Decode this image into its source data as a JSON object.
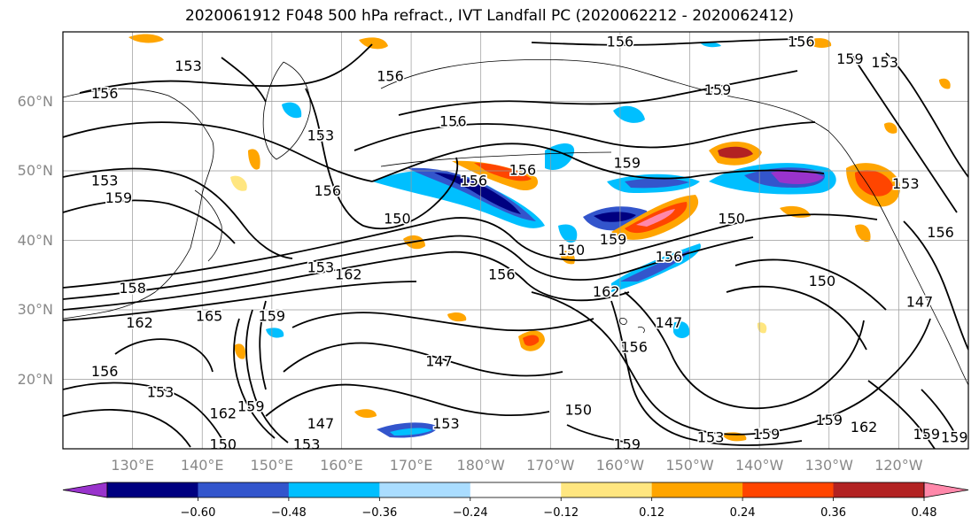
{
  "title": "2020061912 F048 500 hPa refract., IVT Landfall PC (2020062212 - 2020062412)",
  "lat_labels": [
    {
      "label": "60°N",
      "lat": 60
    },
    {
      "label": "50°N",
      "lat": 50
    },
    {
      "label": "40°N",
      "lat": 40
    },
    {
      "label": "30°N",
      "lat": 30
    },
    {
      "label": "20°N",
      "lat": 20
    }
  ],
  "lon_labels": [
    {
      "label": "130°E",
      "lon": 130
    },
    {
      "label": "140°E",
      "lon": 140
    },
    {
      "label": "150°E",
      "lon": 150
    },
    {
      "label": "160°E",
      "lon": 160
    },
    {
      "label": "170°E",
      "lon": 170
    },
    {
      "label": "180°W",
      "lon": 180
    },
    {
      "label": "170°W",
      "lon": 190
    },
    {
      "label": "160°W",
      "lon": 200
    },
    {
      "label": "150°W",
      "lon": 210
    },
    {
      "label": "140°W",
      "lon": 220
    },
    {
      "label": "130°W",
      "lon": 230
    },
    {
      "label": "120°W",
      "lon": 240
    }
  ],
  "map_extent": {
    "lon_min": 120,
    "lon_max": 250,
    "lat_min": 10,
    "lat_max": 70,
    "grid_step": 10
  },
  "colorbar": {
    "levels": [
      -0.72,
      -0.6,
      -0.48,
      -0.36,
      -0.24,
      -0.12,
      0.12,
      0.24,
      0.36,
      0.48,
      0.6,
      0.72
    ],
    "tick_labels": [
      "−0.60",
      "−0.48",
      "−0.36",
      "−0.24",
      "−0.12",
      "0.12",
      "0.24",
      "0.36",
      "0.48",
      "0.60"
    ],
    "tick_values": [
      -0.6,
      -0.48,
      -0.36,
      -0.24,
      -0.12,
      0.12,
      0.24,
      0.36,
      0.48,
      0.6
    ],
    "colors": [
      "#9933cc",
      "#000080",
      "#3355cc",
      "#00bfff",
      "#aaddff",
      "#ffffff",
      "#ffe680",
      "#ffa500",
      "#ff4500",
      "#b22222",
      "#ff88aa"
    ]
  },
  "contour_labels": [
    {
      "text": "156",
      "lon": 200,
      "lat": 68.5
    },
    {
      "text": "156",
      "lon": 226,
      "lat": 68.5
    },
    {
      "text": "159",
      "lon": 233,
      "lat": 66
    },
    {
      "text": "153",
      "lon": 238,
      "lat": 65.5
    },
    {
      "text": "153",
      "lon": 138,
      "lat": 65
    },
    {
      "text": "156",
      "lon": 167,
      "lat": 63.5
    },
    {
      "text": "156",
      "lon": 126,
      "lat": 61
    },
    {
      "text": "159",
      "lon": 214,
      "lat": 61.5
    },
    {
      "text": "153",
      "lon": 157,
      "lat": 55
    },
    {
      "text": "156",
      "lon": 176,
      "lat": 57
    },
    {
      "text": "159",
      "lon": 201,
      "lat": 51
    },
    {
      "text": "156",
      "lon": 186,
      "lat": 50
    },
    {
      "text": "153",
      "lon": 126,
      "lat": 48.5
    },
    {
      "text": "159",
      "lon": 128,
      "lat": 46
    },
    {
      "text": "156",
      "lon": 158,
      "lat": 47
    },
    {
      "text": "156",
      "lon": 179,
      "lat": 48.5
    },
    {
      "text": "150",
      "lon": 168,
      "lat": 43
    },
    {
      "text": "150",
      "lon": 216,
      "lat": 43
    },
    {
      "text": "159",
      "lon": 199,
      "lat": 40
    },
    {
      "text": "150",
      "lon": 193,
      "lat": 38.5
    },
    {
      "text": "156",
      "lon": 207,
      "lat": 37.5
    },
    {
      "text": "153",
      "lon": 157,
      "lat": 36
    },
    {
      "text": "162",
      "lon": 161,
      "lat": 35
    },
    {
      "text": "156",
      "lon": 183,
      "lat": 35
    },
    {
      "text": "162",
      "lon": 198,
      "lat": 32.5
    },
    {
      "text": "150",
      "lon": 229,
      "lat": 34
    },
    {
      "text": "158",
      "lon": 130,
      "lat": 33
    },
    {
      "text": "165",
      "lon": 141,
      "lat": 29
    },
    {
      "text": "159",
      "lon": 150,
      "lat": 29
    },
    {
      "text": "162",
      "lon": 131,
      "lat": 28
    },
    {
      "text": "147",
      "lon": 207,
      "lat": 28
    },
    {
      "text": "156",
      "lon": 202,
      "lat": 24.5
    },
    {
      "text": "147",
      "lon": 174,
      "lat": 22.5
    },
    {
      "text": "153",
      "lon": 134,
      "lat": 18
    },
    {
      "text": "156",
      "lon": 126,
      "lat": 21
    },
    {
      "text": "162",
      "lon": 143,
      "lat": 15
    },
    {
      "text": "159",
      "lon": 147,
      "lat": 16
    },
    {
      "text": "147",
      "lon": 157,
      "lat": 13.5
    },
    {
      "text": "153",
      "lon": 175,
      "lat": 13.5
    },
    {
      "text": "150",
      "lon": 194,
      "lat": 15.5
    },
    {
      "text": "150",
      "lon": 143,
      "lat": 10.5
    },
    {
      "text": "153",
      "lon": 155,
      "lat": 10.5
    },
    {
      "text": "159",
      "lon": 221,
      "lat": 12
    },
    {
      "text": "159",
      "lon": 230,
      "lat": 14
    },
    {
      "text": "162",
      "lon": 235,
      "lat": 13
    },
    {
      "text": "159",
      "lon": 244,
      "lat": 12
    },
    {
      "text": "159",
      "lon": 248,
      "lat": 11.5
    },
    {
      "text": "159",
      "lon": 201,
      "lat": 10.5
    },
    {
      "text": "153",
      "lon": 213,
      "lat": 11.5
    },
    {
      "text": "156",
      "lon": 246,
      "lat": 41
    },
    {
      "text": "153",
      "lon": 241,
      "lat": 48
    },
    {
      "text": "147",
      "lon": 243,
      "lat": 31
    }
  ]
}
